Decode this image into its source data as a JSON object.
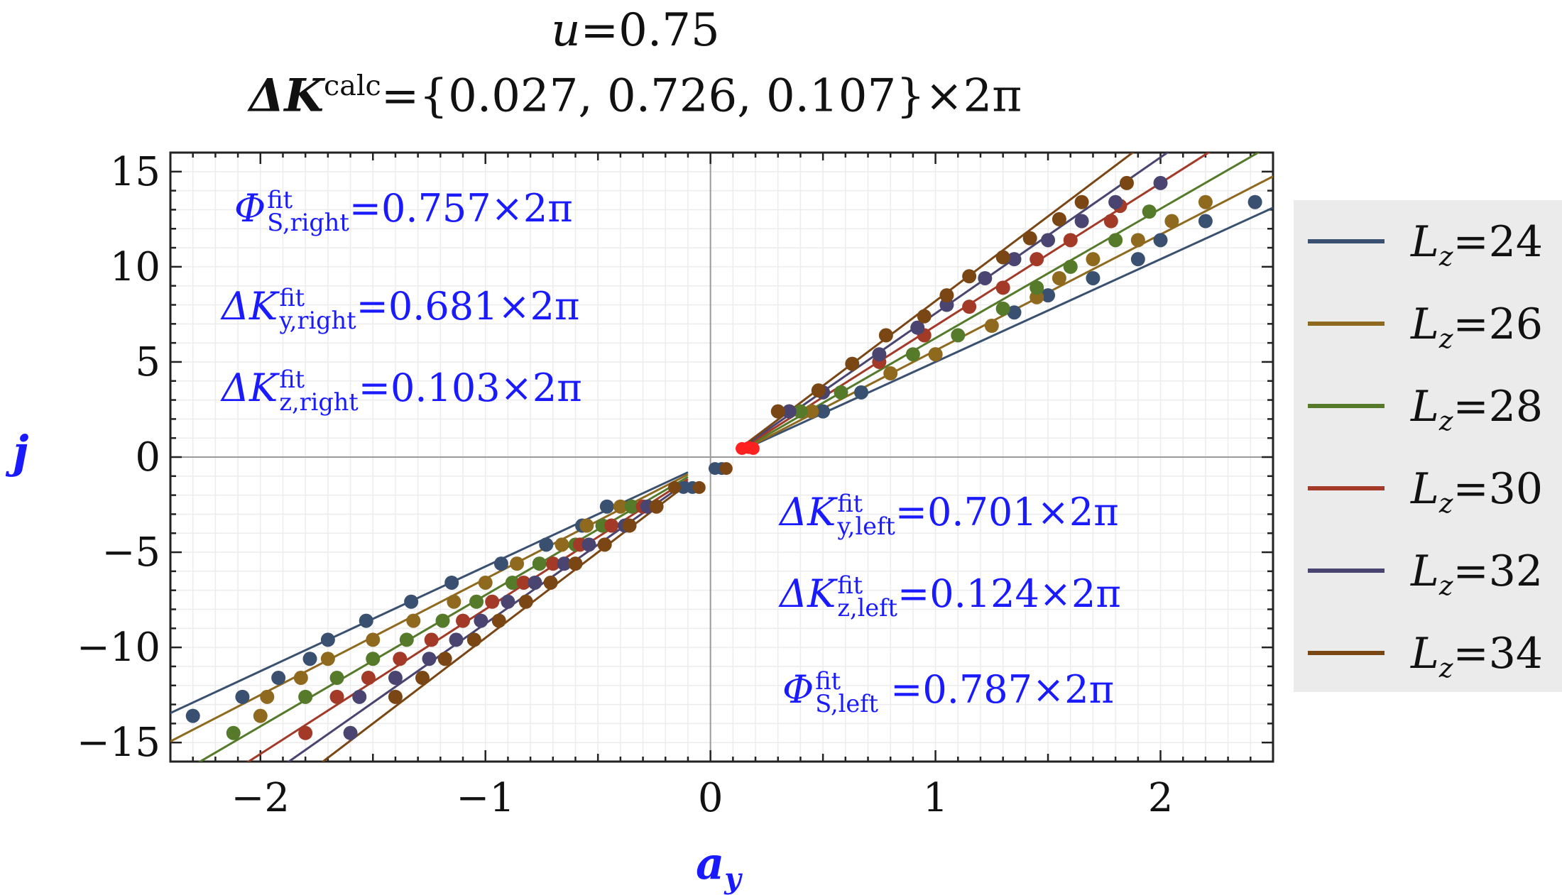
{
  "title": {
    "line1_sym": "u",
    "line1_rest": "=0.75",
    "line2_sym": "ΔK",
    "line2_sup": "calc",
    "line2_rest": "={0.027, 0.726, 0.107}×2π"
  },
  "annotations": {
    "phi_right": {
      "sym": "Φ",
      "sup": "fit",
      "sub": "S,right",
      "value": "=0.757×2π"
    },
    "ky_right": {
      "sym": "ΔK",
      "sup": "fit",
      "sub": "y,right",
      "value": "=0.681×2π"
    },
    "kz_right": {
      "sym": "ΔK",
      "sup": "fit",
      "sub": "z,right",
      "value": "=0.103×2π"
    },
    "ky_left": {
      "sym": "ΔK",
      "sup": "fit",
      "sub": "y,left",
      "value": "=0.701×2π"
    },
    "kz_left": {
      "sym": "ΔK",
      "sup": "fit",
      "sub": "z,left",
      "value": "=0.124×2π"
    },
    "phi_left": {
      "sym": "Φ",
      "sup": "fit",
      "sub": "S,left",
      "value": " =0.787×2π"
    }
  },
  "chart_data": {
    "type": "scatter",
    "xlabel": "a_y",
    "ylabel": "j",
    "xlim": [
      -2.4,
      2.5
    ],
    "ylim": [
      -16,
      16
    ],
    "xticks": [
      -2,
      -1,
      0,
      1,
      2
    ],
    "yticks": [
      -15,
      -10,
      -5,
      0,
      5,
      10,
      15
    ],
    "grid": true,
    "legend_position": "right",
    "series": [
      {
        "name": "Lz=24",
        "color": "#3a5070",
        "fit_right": {
          "slope": 5.4,
          "intercept": -0.4,
          "x_range": [
            0.15,
            2.5
          ]
        },
        "fit_left": {
          "slope": 5.5,
          "intercept": -0.25,
          "x_range": [
            -2.4,
            -0.1
          ]
        },
        "points_right": [
          [
            0.5,
            2.4
          ],
          [
            0.67,
            3.4
          ],
          [
            1.0,
            5.4
          ],
          [
            1.35,
            7.6
          ],
          [
            1.5,
            8.5
          ],
          [
            1.7,
            9.4
          ],
          [
            1.9,
            10.4
          ],
          [
            2.0,
            11.4
          ],
          [
            2.2,
            12.4
          ],
          [
            2.42,
            13.4
          ]
        ],
        "points_left": [
          [
            -0.46,
            -2.6
          ],
          [
            -0.57,
            -3.6
          ],
          [
            -0.73,
            -4.6
          ],
          [
            -0.93,
            -5.6
          ],
          [
            -1.15,
            -6.6
          ],
          [
            -1.33,
            -7.6
          ],
          [
            -1.53,
            -8.6
          ],
          [
            -1.7,
            -9.6
          ],
          [
            -1.78,
            -10.6
          ],
          [
            -1.92,
            -11.6
          ],
          [
            -2.08,
            -12.6
          ],
          [
            -2.3,
            -13.6
          ]
        ]
      },
      {
        "name": "Lz=26",
        "color": "#8f6a1e",
        "fit_right": {
          "slope": 6.1,
          "intercept": -0.5,
          "x_range": [
            0.15,
            2.5
          ]
        },
        "fit_left": {
          "slope": 6.1,
          "intercept": -0.3,
          "x_range": [
            -2.4,
            -0.1
          ]
        },
        "points_right": [
          [
            0.45,
            2.4
          ],
          [
            0.8,
            4.4
          ],
          [
            1.0,
            5.4
          ],
          [
            1.25,
            6.9
          ],
          [
            1.45,
            8.4
          ],
          [
            1.55,
            9.4
          ],
          [
            1.7,
            10.4
          ],
          [
            1.9,
            11.4
          ],
          [
            2.05,
            12.4
          ],
          [
            2.2,
            13.4
          ]
        ],
        "points_left": [
          [
            -0.4,
            -2.6
          ],
          [
            -0.55,
            -3.6
          ],
          [
            -0.66,
            -4.6
          ],
          [
            -0.86,
            -5.6
          ],
          [
            -1.0,
            -6.6
          ],
          [
            -1.14,
            -7.6
          ],
          [
            -1.32,
            -8.6
          ],
          [
            -1.5,
            -9.6
          ],
          [
            -1.7,
            -10.6
          ],
          [
            -1.82,
            -11.6
          ],
          [
            -1.97,
            -12.6
          ],
          [
            -2.0,
            -13.6
          ]
        ]
      },
      {
        "name": "Lz=28",
        "color": "#557a2a",
        "fit_right": {
          "slope": 6.8,
          "intercept": -0.55,
          "x_range": [
            0.15,
            2.5
          ]
        },
        "fit_left": {
          "slope": 6.9,
          "intercept": -0.35,
          "x_range": [
            -2.4,
            -0.1
          ]
        },
        "points_right": [
          [
            0.4,
            2.4
          ],
          [
            0.58,
            3.4
          ],
          [
            0.9,
            5.4
          ],
          [
            1.1,
            6.4
          ],
          [
            1.3,
            7.8
          ],
          [
            1.45,
            8.9
          ],
          [
            1.6,
            10.0
          ],
          [
            1.8,
            11.4
          ],
          [
            1.95,
            12.9
          ]
        ],
        "points_left": [
          [
            -0.35,
            -2.6
          ],
          [
            -0.48,
            -3.6
          ],
          [
            -0.6,
            -4.6
          ],
          [
            -0.76,
            -5.6
          ],
          [
            -0.88,
            -6.6
          ],
          [
            -1.04,
            -7.6
          ],
          [
            -1.19,
            -8.6
          ],
          [
            -1.35,
            -9.6
          ],
          [
            -1.5,
            -10.6
          ],
          [
            -1.66,
            -11.6
          ],
          [
            -1.8,
            -12.6
          ],
          [
            -2.12,
            -14.5
          ]
        ]
      },
      {
        "name": "Lz=30",
        "color": "#a33a28",
        "fit_right": {
          "slope": 7.5,
          "intercept": -0.6,
          "x_range": [
            0.15,
            2.5
          ]
        },
        "fit_left": {
          "slope": 7.6,
          "intercept": -0.4,
          "x_range": [
            -2.4,
            -0.1
          ]
        },
        "points_right": [
          [
            0.35,
            2.4
          ],
          [
            0.75,
            5.0
          ],
          [
            0.95,
            6.4
          ],
          [
            1.15,
            7.9
          ],
          [
            1.3,
            8.9
          ],
          [
            1.45,
            10.4
          ],
          [
            1.6,
            11.4
          ],
          [
            1.78,
            12.4
          ],
          [
            1.82,
            13.2
          ]
        ],
        "points_left": [
          [
            -0.3,
            -2.6
          ],
          [
            -0.44,
            -3.6
          ],
          [
            -0.58,
            -4.6
          ],
          [
            -0.7,
            -5.6
          ],
          [
            -0.83,
            -6.6
          ],
          [
            -0.97,
            -7.6
          ],
          [
            -1.1,
            -8.6
          ],
          [
            -1.24,
            -9.6
          ],
          [
            -1.38,
            -10.6
          ],
          [
            -1.52,
            -11.6
          ],
          [
            -1.66,
            -12.6
          ],
          [
            -1.8,
            -14.5
          ]
        ]
      },
      {
        "name": "Lz=32",
        "color": "#4a4470",
        "fit_right": {
          "slope": 8.2,
          "intercept": -0.65,
          "x_range": [
            0.15,
            2.5
          ]
        },
        "fit_left": {
          "slope": 8.3,
          "intercept": -0.45,
          "x_range": [
            -2.4,
            -0.1
          ]
        },
        "points_right": [
          [
            0.35,
            2.4
          ],
          [
            0.5,
            3.4
          ],
          [
            0.75,
            5.4
          ],
          [
            0.92,
            6.8
          ],
          [
            1.05,
            8.0
          ],
          [
            1.22,
            9.4
          ],
          [
            1.35,
            10.4
          ],
          [
            1.5,
            11.4
          ],
          [
            1.65,
            12.4
          ],
          [
            1.8,
            13.4
          ],
          [
            2.0,
            14.4
          ]
        ],
        "points_left": [
          [
            -0.28,
            -2.6
          ],
          [
            -0.38,
            -3.6
          ],
          [
            -0.54,
            -4.6
          ],
          [
            -0.65,
            -5.6
          ],
          [
            -0.78,
            -6.6
          ],
          [
            -0.9,
            -7.6
          ],
          [
            -1.02,
            -8.6
          ],
          [
            -1.13,
            -9.6
          ],
          [
            -1.25,
            -10.6
          ],
          [
            -1.4,
            -11.6
          ],
          [
            -1.56,
            -12.6
          ],
          [
            -1.6,
            -14.5
          ]
        ]
      },
      {
        "name": "Lz=34",
        "color": "#7a4714",
        "fit_right": {
          "slope": 8.9,
          "intercept": -0.7,
          "x_range": [
            0.15,
            2.5
          ]
        },
        "fit_left": {
          "slope": 9.0,
          "intercept": -0.5,
          "x_range": [
            -2.4,
            -0.1
          ]
        },
        "points_right": [
          [
            0.3,
            2.4
          ],
          [
            0.48,
            3.5
          ],
          [
            0.63,
            4.9
          ],
          [
            0.78,
            6.4
          ],
          [
            0.95,
            7.4
          ],
          [
            1.05,
            8.5
          ],
          [
            1.15,
            9.5
          ],
          [
            1.3,
            10.5
          ],
          [
            1.42,
            11.5
          ],
          [
            1.55,
            12.5
          ],
          [
            1.65,
            13.4
          ],
          [
            1.85,
            14.4
          ]
        ],
        "points_left": [
          [
            -0.24,
            -2.6
          ],
          [
            -0.36,
            -3.6
          ],
          [
            -0.47,
            -4.6
          ],
          [
            -0.6,
            -5.6
          ],
          [
            -0.71,
            -6.6
          ],
          [
            -0.82,
            -7.6
          ],
          [
            -0.94,
            -8.6
          ],
          [
            -1.05,
            -9.6
          ],
          [
            -1.18,
            -10.6
          ],
          [
            -1.28,
            -11.6
          ],
          [
            -1.4,
            -12.6
          ]
        ]
      }
    ],
    "center_points": [
      {
        "color": "#3a5070",
        "points": [
          [
            0.02,
            -0.6
          ],
          [
            0.05,
            -0.6
          ],
          [
            -0.08,
            -1.6
          ],
          [
            -0.12,
            -1.6
          ]
        ]
      },
      {
        "color": "#7a4714",
        "points": [
          [
            0.07,
            -0.6
          ],
          [
            -0.05,
            -1.6
          ],
          [
            -0.16,
            -1.6
          ]
        ]
      },
      {
        "color": "#ff2020",
        "points": [
          [
            0.14,
            0.45
          ],
          [
            0.17,
            0.5
          ],
          [
            0.19,
            0.45
          ]
        ]
      }
    ]
  }
}
